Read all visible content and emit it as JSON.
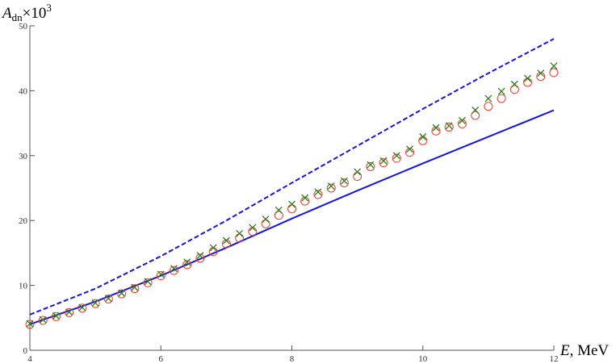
{
  "chart_data": {
    "type": "line",
    "ylabel": {
      "main": "A",
      "sub": "dn",
      "times": "×10",
      "sup": "3"
    },
    "xlabel": {
      "var": "E",
      "unit": ", MeV"
    },
    "xlim": [
      4,
      12
    ],
    "xticks": [
      4,
      6,
      8,
      10,
      12
    ],
    "ylim": [
      0,
      50
    ],
    "yticks": [
      0,
      10,
      20,
      30,
      40,
      50
    ],
    "series": [
      {
        "style": "dashed",
        "color": "#1515e0",
        "x": [
          4,
          5,
          6,
          7,
          8,
          9,
          10,
          11,
          12
        ],
        "values": [
          5.5,
          9.5,
          14.5,
          20,
          25.8,
          31.5,
          37.2,
          42.7,
          48
        ]
      },
      {
        "style": "solid",
        "color": "#1515e0",
        "x": [
          4,
          5,
          6,
          7,
          8,
          9,
          10,
          11,
          12
        ],
        "values": [
          4,
          7.5,
          11.5,
          15.8,
          20.3,
          24.6,
          28.8,
          32.9,
          37
        ]
      },
      {
        "style": "circle",
        "color": "#f03a2a",
        "x": [
          4,
          4.2,
          4.4,
          4.6,
          4.8,
          5,
          5.2,
          5.4,
          5.6,
          5.8,
          6,
          6.2,
          6.4,
          6.6,
          6.8,
          7,
          7.2,
          7.4,
          7.6,
          7.8,
          8,
          8.2,
          8.4,
          8.6,
          8.8,
          9,
          9.2,
          9.4,
          9.6,
          9.8,
          10,
          10.2,
          10.4,
          10.6,
          10.8,
          11,
          11.2,
          11.4,
          11.6,
          11.8,
          12
        ],
        "values": [
          4.0,
          4.6,
          5.2,
          5.8,
          6.5,
          7.2,
          7.9,
          8.7,
          9.5,
          10.4,
          11.5,
          12.3,
          13.2,
          14.2,
          15.2,
          16.4,
          17.3,
          18.3,
          19.5,
          20.8,
          21.8,
          23.0,
          24.0,
          25.0,
          25.8,
          26.8,
          28.3,
          28.9,
          29.6,
          30.5,
          32.3,
          33.8,
          34.4,
          34.9,
          36.2,
          37.6,
          38.8,
          40.2,
          41.3,
          42.2,
          42.8
        ]
      },
      {
        "style": "cross",
        "color": "#2e7d1e",
        "x": [
          4,
          4.2,
          4.4,
          4.6,
          4.8,
          5,
          5.2,
          5.4,
          5.6,
          5.8,
          6,
          6.2,
          6.4,
          6.6,
          6.8,
          7,
          7.2,
          7.4,
          7.6,
          7.8,
          8,
          8.2,
          8.4,
          8.6,
          8.8,
          9,
          9.2,
          9.4,
          9.6,
          9.8,
          10,
          10.2,
          10.4,
          10.6,
          10.8,
          11,
          11.2,
          11.4,
          11.6,
          11.8,
          12
        ],
        "values": [
          4.1,
          4.7,
          5.3,
          5.9,
          6.6,
          7.3,
          8.0,
          8.8,
          9.7,
          10.6,
          11.7,
          12.6,
          13.6,
          14.6,
          15.8,
          16.9,
          18.0,
          18.9,
          20.2,
          21.6,
          22.5,
          23.5,
          24.4,
          25.3,
          26.1,
          27.5,
          28.6,
          29.2,
          30.0,
          31.0,
          32.9,
          34.3,
          34.6,
          35.4,
          37.0,
          38.8,
          39.9,
          41.0,
          41.9,
          42.7,
          43.8
        ]
      }
    ]
  }
}
